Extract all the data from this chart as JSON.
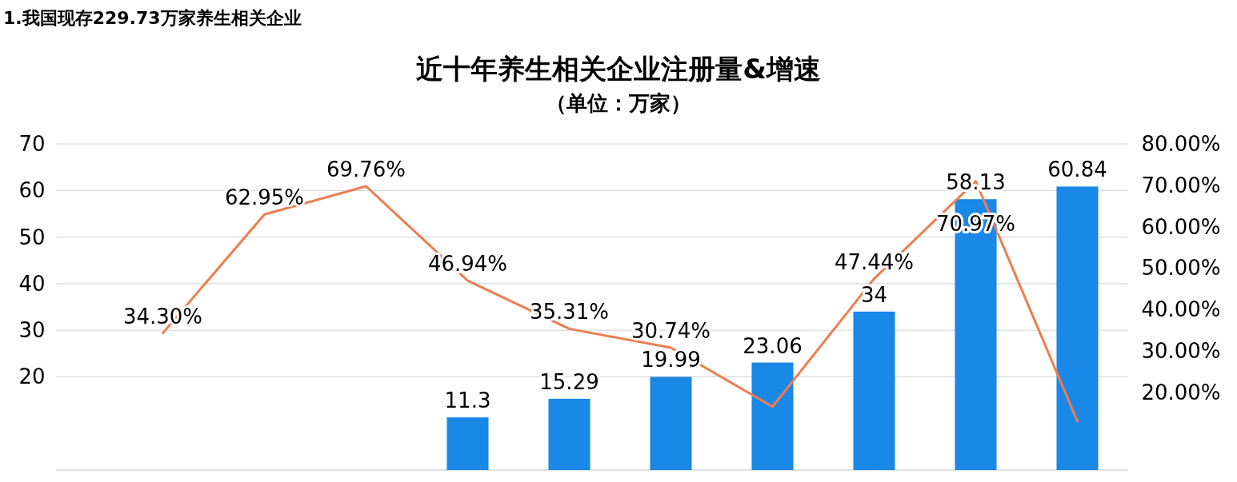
{
  "chart_data": {
    "type": "bar",
    "title": "近十年养生相关企业注册量&增速",
    "subtitle": "（单位：万家）",
    "annotations": [
      "1.我国现存229.73万家养生相关企业"
    ],
    "categories": [
      null,
      null,
      null,
      null,
      null,
      null,
      null,
      null,
      null,
      null
    ],
    "series": [
      {
        "color": "#1a88e6",
        "values": [
          null,
          null,
          null,
          11.3,
          15.29,
          19.99,
          23.06,
          34,
          58.13,
          60.84
        ],
        "value_labels": [
          null,
          null,
          null,
          "11.3",
          "15.29",
          "19.99",
          "23.06",
          "34",
          "58.13",
          "60.84"
        ]
      },
      {
        "type": "line",
        "axis": "y2",
        "color": "#ed7d4f",
        "values": [
          34.3,
          62.95,
          69.76,
          46.94,
          35.31,
          30.74,
          16.5,
          47.44,
          70.97,
          13
        ],
        "value_labels": [
          "34.30%",
          "62.95%",
          "69.76%",
          "46.94%",
          "35.31%",
          "30.74%",
          null,
          "47.44%",
          "70.97%",
          null
        ]
      }
    ],
    "ylim": [
      0,
      70
    ],
    "yticks": [
      20,
      30,
      40,
      50,
      60,
      70
    ],
    "y2lim": [
      1.2,
      80
    ],
    "y2ticks": [
      {
        "value": 20,
        "label": "20.00%"
      },
      {
        "value": 30,
        "label": "30.00%"
      },
      {
        "value": 40,
        "label": "40.00%"
      },
      {
        "value": 50,
        "label": "50.00%"
      },
      {
        "value": 60,
        "label": "60.00%"
      },
      {
        "value": 70,
        "label": "70.00%"
      },
      {
        "value": 80,
        "label": "80.00%"
      }
    ],
    "grid": "y",
    "marker": "none",
    "line_style": "solid"
  }
}
